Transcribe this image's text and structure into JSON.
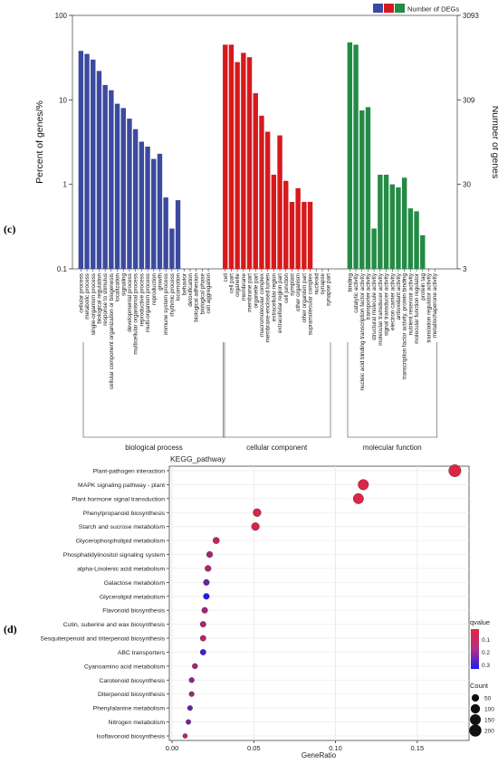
{
  "panel_labels": {
    "c": "(c)",
    "d": "(d)"
  },
  "chart_data": [
    {
      "type": "bar",
      "ylabel_left": "Percent of genes/%",
      "ylabel_right": "Number of genes",
      "left_ticks": [
        "100",
        "10",
        "1",
        "0.1"
      ],
      "right_ticks": [
        "3093",
        "309",
        "30",
        "3"
      ],
      "yscale": "log",
      "ylim": [
        0.1,
        100
      ],
      "legend": {
        "label": "Number of DEGs",
        "colors": [
          "#3b4a9e",
          "#d7191c",
          "#238b45"
        ],
        "placement": "top-right"
      },
      "groups": [
        {
          "name": "biological process",
          "color": "#3b4a9e",
          "categories": [
            "cellular process",
            "metabolic process",
            "single-organism process",
            "biological regulation",
            "response to stimulus",
            "cellular component organization or biogenesis",
            "localization",
            "signaling",
            "developmental process",
            "multicellular organismal process",
            "reproductive process",
            "multi-organism process",
            "reproduction",
            "growth",
            "immune system process",
            "rhythmic process",
            "locomotion",
            "behavior",
            "detoxification",
            "biological adhesion",
            "biological phase",
            "cell aggregation"
          ],
          "values": [
            38,
            35,
            30,
            22,
            15,
            13,
            9,
            8,
            6,
            4.5,
            3.2,
            2.8,
            2.0,
            2.3,
            0.7,
            0.3,
            0.65,
            0,
            0,
            0,
            0,
            0
          ]
        },
        {
          "name": "cellular component",
          "color": "#d7191c",
          "categories": [
            "cell",
            "cell part",
            "organelle",
            "membrane",
            "membrane part",
            "organelle part",
            "macromolecular complex",
            "membrane-enclosed lumen",
            "extracellular region",
            "extracellular region part",
            "cell junction",
            "symplast",
            "other organism",
            "other organism part",
            "supramolecular complex",
            "nucleoid",
            "synapse",
            "synapse part"
          ],
          "values": [
            45,
            45,
            28,
            36,
            32,
            12,
            6.5,
            4.2,
            1.3,
            3.8,
            1.1,
            0.62,
            0.9,
            0.62,
            0.62,
            0,
            0,
            0
          ]
        },
        {
          "name": "molecular function",
          "color": "#238b45",
          "categories": [
            "binding",
            "catalytic activity",
            "nucleic acid binding transcription factor activity",
            "transporter activity",
            "structural molecule activity",
            "molecular transducer activity",
            "signal transducer activity",
            "electron carrier activity",
            "antioxidant activity",
            "transcription factor activity, protein binding",
            "nutrient reservoir activity",
            "molecular function regulator",
            "protein tag",
            "translation regulator activity",
            "metallochaperone activity"
          ],
          "values": [
            48,
            45,
            7.5,
            8.2,
            0.3,
            1.3,
            1.3,
            1.0,
            0.92,
            1.2,
            0.52,
            0.48,
            0.25,
            0,
            0
          ]
        }
      ]
    },
    {
      "type": "scatter",
      "title": "KEGG_pathway",
      "xlabel": "GeneRatio",
      "xlim": [
        0,
        0.18
      ],
      "xticks": [
        "0.00",
        "0.05",
        "0.10",
        "0.15"
      ],
      "qvalue_legend": {
        "title": "qvalue",
        "ticks": [
          "0.1",
          "0.2",
          "0.3"
        ],
        "range": [
          0.02,
          0.33
        ],
        "high_color": "#e3263f",
        "low_color": "#1f1ff0"
      },
      "count_legend": {
        "title": "Count",
        "values": [
          50,
          100,
          150,
          200
        ]
      },
      "pathways": [
        {
          "name": "Plant-pathogen interaction",
          "ratio": 0.173,
          "count": 210,
          "q": 0.03
        },
        {
          "name": "MAPK signaling pathway - plant",
          "ratio": 0.117,
          "count": 140,
          "q": 0.03
        },
        {
          "name": "Plant hormone signal transduction",
          "ratio": 0.114,
          "count": 135,
          "q": 0.03
        },
        {
          "name": "Phenylpropanoid biosynthesis",
          "ratio": 0.052,
          "count": 65,
          "q": 0.04
        },
        {
          "name": "Starch and sucrose metabolism",
          "ratio": 0.051,
          "count": 62,
          "q": 0.04
        },
        {
          "name": "Glycerophospholipid metabolism",
          "ratio": 0.027,
          "count": 33,
          "q": 0.08
        },
        {
          "name": "Phosphatidylinositol signaling system",
          "ratio": 0.023,
          "count": 28,
          "q": 0.12
        },
        {
          "name": "alpha-Linolenic acid metabolism",
          "ratio": 0.022,
          "count": 27,
          "q": 0.1
        },
        {
          "name": "Galactose metabolism",
          "ratio": 0.021,
          "count": 25,
          "q": 0.2
        },
        {
          "name": "Glycerolipid metabolism",
          "ratio": 0.021,
          "count": 25,
          "q": 0.33
        },
        {
          "name": "Flavonoid biosynthesis",
          "ratio": 0.02,
          "count": 24,
          "q": 0.12
        },
        {
          "name": "Cutin, suberine and wax biosynthesis",
          "ratio": 0.019,
          "count": 23,
          "q": 0.1
        },
        {
          "name": "Sesquiterpenoid and triterpenoid biosynthesis",
          "ratio": 0.019,
          "count": 22,
          "q": 0.08
        },
        {
          "name": "ABC transporters",
          "ratio": 0.019,
          "count": 22,
          "q": 0.28
        },
        {
          "name": "Cyanoamino acid metabolism",
          "ratio": 0.014,
          "count": 17,
          "q": 0.12
        },
        {
          "name": "Carotenoid biosynthesis",
          "ratio": 0.012,
          "count": 15,
          "q": 0.15
        },
        {
          "name": "Diterpenoid biosynthesis",
          "ratio": 0.012,
          "count": 14,
          "q": 0.12
        },
        {
          "name": "Phenylalanine metabolism",
          "ratio": 0.011,
          "count": 13,
          "q": 0.22
        },
        {
          "name": "Nitrogen metabolism",
          "ratio": 0.01,
          "count": 12,
          "q": 0.18
        },
        {
          "name": "Isoflavonoid biosynthesis",
          "ratio": 0.008,
          "count": 9,
          "q": 0.08
        }
      ]
    }
  ]
}
